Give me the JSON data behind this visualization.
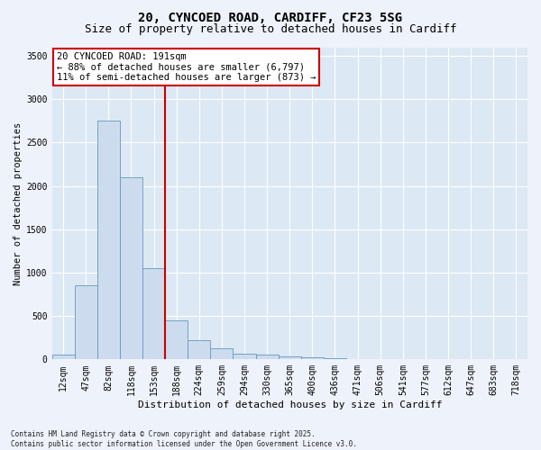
{
  "title1": "20, CYNCOED ROAD, CARDIFF, CF23 5SG",
  "title2": "Size of property relative to detached houses in Cardiff",
  "xlabel": "Distribution of detached houses by size in Cardiff",
  "ylabel": "Number of detached properties",
  "bins": [
    "12sqm",
    "47sqm",
    "82sqm",
    "118sqm",
    "153sqm",
    "188sqm",
    "224sqm",
    "259sqm",
    "294sqm",
    "330sqm",
    "365sqm",
    "400sqm",
    "436sqm",
    "471sqm",
    "506sqm",
    "541sqm",
    "577sqm",
    "612sqm",
    "647sqm",
    "683sqm",
    "718sqm"
  ],
  "values": [
    60,
    850,
    2750,
    2100,
    1050,
    450,
    220,
    130,
    70,
    55,
    30,
    20,
    10,
    5,
    3,
    2,
    1,
    0,
    0,
    0,
    0
  ],
  "bar_color": "#ccdcee",
  "bar_edge_color": "#6699bb",
  "vline_x": 4.5,
  "vline_color": "#cc0000",
  "annotation_text": "20 CYNCOED ROAD: 191sqm\n← 88% of detached houses are smaller (6,797)\n11% of semi-detached houses are larger (873) →",
  "annotation_box_facecolor": "#ffffff",
  "annotation_box_edgecolor": "#cc0000",
  "ylim": [
    0,
    3600
  ],
  "yticks": [
    0,
    500,
    1000,
    1500,
    2000,
    2500,
    3000,
    3500
  ],
  "fig_facecolor": "#eef2fa",
  "ax_facecolor": "#dce8f4",
  "grid_color": "#ffffff",
  "footnote": "Contains HM Land Registry data © Crown copyright and database right 2025.\nContains public sector information licensed under the Open Government Licence v3.0.",
  "title1_fontsize": 10,
  "title2_fontsize": 9,
  "ylabel_fontsize": 7.5,
  "xlabel_fontsize": 8,
  "tick_fontsize": 7,
  "annot_fontsize": 7.5,
  "footnote_fontsize": 5.5
}
